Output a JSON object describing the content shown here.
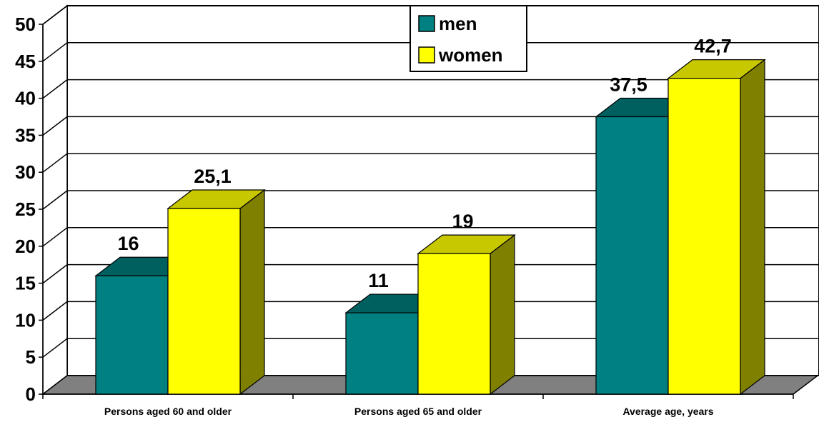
{
  "chart_data": {
    "type": "bar",
    "categories": [
      "Persons aged 60 and older",
      "Persons aged 65 and older",
      "Average age, years"
    ],
    "series": [
      {
        "name": "men",
        "values": [
          16,
          11,
          37.5
        ],
        "labels": [
          "16",
          "11",
          "37,5"
        ],
        "color": "#008080",
        "top_color": "#005f5f"
      },
      {
        "name": "women",
        "values": [
          25.1,
          19,
          42.7
        ],
        "labels": [
          "25,1",
          "19",
          "42,7"
        ],
        "color": "#ffff00",
        "top_color": "#c8c800",
        "side_color": "#808000"
      }
    ],
    "ylim": [
      0,
      50
    ],
    "yticks": [
      0,
      5,
      10,
      15,
      20,
      25,
      30,
      35,
      40,
      45,
      50
    ],
    "grid": true,
    "legend_position": "top-center",
    "title": "",
    "xlabel": "",
    "ylabel": "",
    "floor_color": "#808080"
  }
}
